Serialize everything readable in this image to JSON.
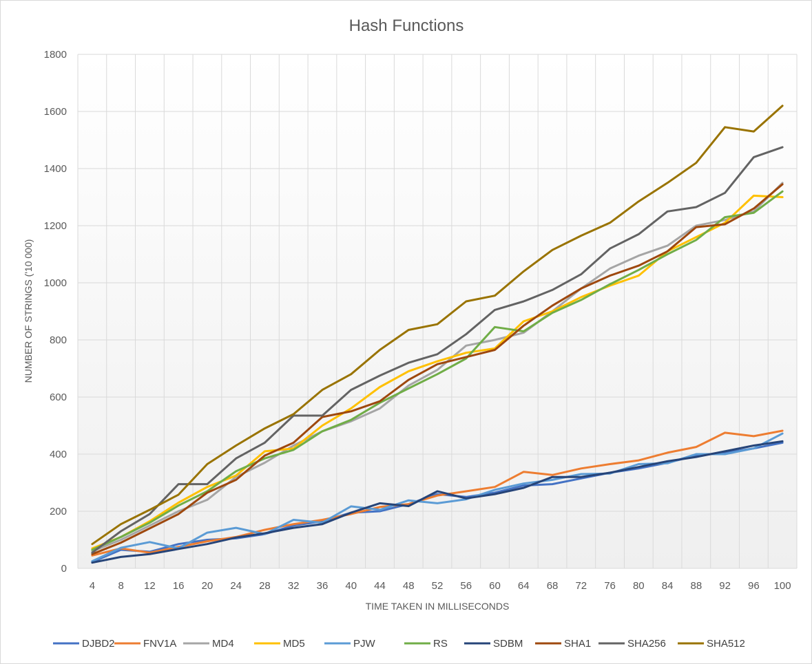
{
  "chart_data": {
    "type": "line",
    "title": "Hash Functions",
    "xlabel": "TIME TAKEN IN MILLISECONDS",
    "ylabel": "NUMBER OF STRINGS ('10 000)",
    "ylim": [
      0,
      1800
    ],
    "yticks": [
      0,
      200,
      400,
      600,
      800,
      1000,
      1200,
      1400,
      1600,
      1800
    ],
    "grid": true,
    "legend": "bottom",
    "categories": [
      4,
      8,
      12,
      16,
      20,
      24,
      28,
      32,
      36,
      40,
      44,
      48,
      52,
      56,
      60,
      64,
      68,
      72,
      76,
      80,
      84,
      88,
      92,
      96,
      100
    ],
    "series": [
      {
        "name": "DJBD2",
        "color": "#4472C4",
        "values": [
          22,
          65,
          58,
          85,
          100,
          105,
          120,
          150,
          165,
          195,
          200,
          225,
          260,
          250,
          265,
          290,
          295,
          315,
          335,
          350,
          370,
          395,
          405,
          420,
          440
        ]
      },
      {
        "name": "FNV1A",
        "color": "#ED7D31",
        "values": [
          45,
          70,
          55,
          75,
          95,
          110,
          135,
          155,
          170,
          190,
          215,
          225,
          255,
          270,
          285,
          338,
          327,
          350,
          365,
          378,
          405,
          425,
          475,
          463,
          482
        ]
      },
      {
        "name": "MD4",
        "color": "#A5A5A5",
        "values": [
          60,
          100,
          150,
          200,
          240,
          320,
          370,
          430,
          480,
          515,
          560,
          640,
          695,
          780,
          800,
          825,
          900,
          980,
          1050,
          1095,
          1130,
          1200,
          1220,
          1250,
          1350
        ]
      },
      {
        "name": "MD5",
        "color": "#FFC000",
        "values": [
          70,
          110,
          165,
          230,
          285,
          325,
          410,
          420,
          500,
          560,
          635,
          690,
          725,
          755,
          770,
          865,
          900,
          950,
          990,
          1025,
          1110,
          1160,
          1210,
          1305,
          1300
        ]
      },
      {
        "name": "PJW",
        "color": "#5B9BD5",
        "values": [
          25,
          72,
          92,
          70,
          125,
          142,
          120,
          170,
          160,
          217,
          205,
          238,
          228,
          242,
          275,
          297,
          310,
          330,
          332,
          365,
          368,
          400,
          400,
          420,
          472
        ]
      },
      {
        "name": "RS",
        "color": "#70AD47",
        "values": [
          65,
          110,
          160,
          220,
          270,
          340,
          385,
          415,
          480,
          520,
          580,
          630,
          680,
          735,
          845,
          830,
          895,
          940,
          995,
          1045,
          1100,
          1150,
          1230,
          1245,
          1320
        ]
      },
      {
        "name": "SDBM",
        "color": "#264478",
        "values": [
          20,
          40,
          50,
          68,
          85,
          108,
          123,
          142,
          155,
          195,
          228,
          218,
          270,
          245,
          260,
          282,
          320,
          320,
          335,
          355,
          375,
          390,
          410,
          430,
          445
        ]
      },
      {
        "name": "SHA1",
        "color": "#9E480E",
        "values": [
          50,
          90,
          140,
          190,
          265,
          310,
          395,
          440,
          530,
          550,
          585,
          660,
          715,
          740,
          765,
          850,
          920,
          980,
          1025,
          1060,
          1110,
          1195,
          1205,
          1260,
          1345
        ]
      },
      {
        "name": "SHA256",
        "color": "#636363",
        "values": [
          55,
          130,
          190,
          295,
          295,
          385,
          440,
          535,
          535,
          625,
          675,
          720,
          750,
          820,
          905,
          935,
          975,
          1030,
          1120,
          1170,
          1250,
          1265,
          1315,
          1440,
          1475
        ]
      },
      {
        "name": "SHA512",
        "color": "#997300",
        "values": [
          85,
          155,
          205,
          258,
          365,
          430,
          490,
          540,
          625,
          680,
          765,
          835,
          855,
          935,
          955,
          1040,
          1115,
          1165,
          1210,
          1285,
          1350,
          1420,
          1545,
          1530,
          1620
        ]
      }
    ]
  }
}
